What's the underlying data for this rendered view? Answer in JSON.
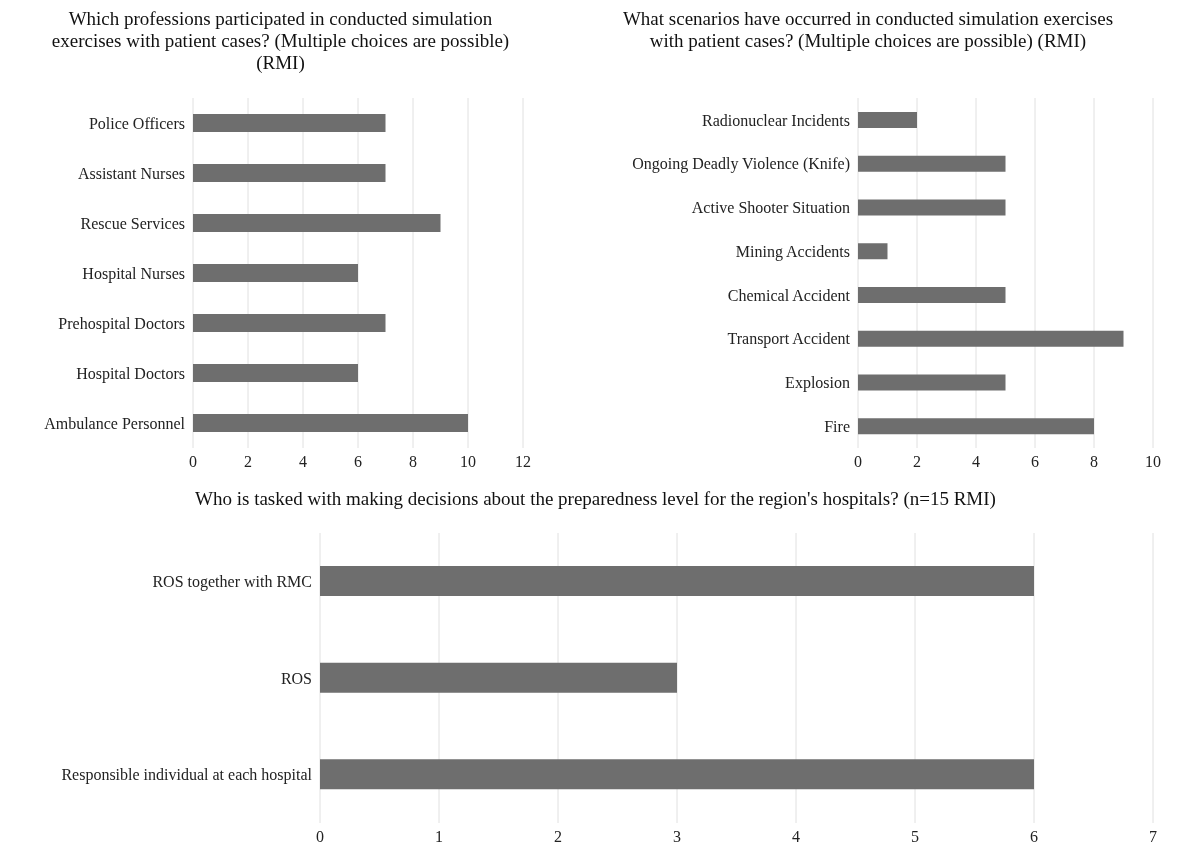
{
  "chart_data": [
    {
      "type": "bar",
      "orientation": "horizontal",
      "title": "Which professions participated in conducted simulation exercises with patient cases? (Multiple choices are possible) (RMI)",
      "categories": [
        "Police Officers",
        "Assistant Nurses",
        "Rescue Services",
        "Hospital Nurses",
        "Prehospital Doctors",
        "Hospital Doctors",
        "Ambulance Personnel"
      ],
      "values": [
        7,
        7,
        9,
        6,
        7,
        6,
        10
      ],
      "color": "#6e6e6e",
      "xlim": [
        0,
        12
      ],
      "xticks": [
        0,
        2,
        4,
        6,
        8,
        10,
        12
      ],
      "grid": "x",
      "legend": false
    },
    {
      "type": "bar",
      "orientation": "horizontal",
      "title": "What scenarios have occurred in conducted simulation exercises with patient cases? (Multiple choices are possible) (RMI)",
      "categories": [
        "Radionuclear Incidents",
        "Ongoing Deadly Violence (Knife)",
        "Active Shooter Situation",
        "Mining Accidents",
        "Chemical Accident",
        "Transport Accident",
        "Explosion",
        "Fire"
      ],
      "values": [
        2,
        5,
        5,
        1,
        5,
        9,
        5,
        8
      ],
      "color": "#6e6e6e",
      "xlim": [
        0,
        10
      ],
      "xticks": [
        0,
        2,
        4,
        6,
        8,
        10
      ],
      "grid": "x",
      "legend": false
    },
    {
      "type": "bar",
      "orientation": "horizontal",
      "title": "Who is tasked with making decisions about the preparedness level for the region's hospitals? (n=15 RMI)",
      "categories": [
        "ROS together with RMC",
        "ROS",
        "Responsible individual at each hospital"
      ],
      "values": [
        6,
        3,
        6
      ],
      "color": "#6e6e6e",
      "xlim": [
        0,
        7
      ],
      "xticks": [
        0,
        1,
        2,
        3,
        4,
        5,
        6,
        7
      ],
      "grid": "x",
      "legend": false
    }
  ]
}
